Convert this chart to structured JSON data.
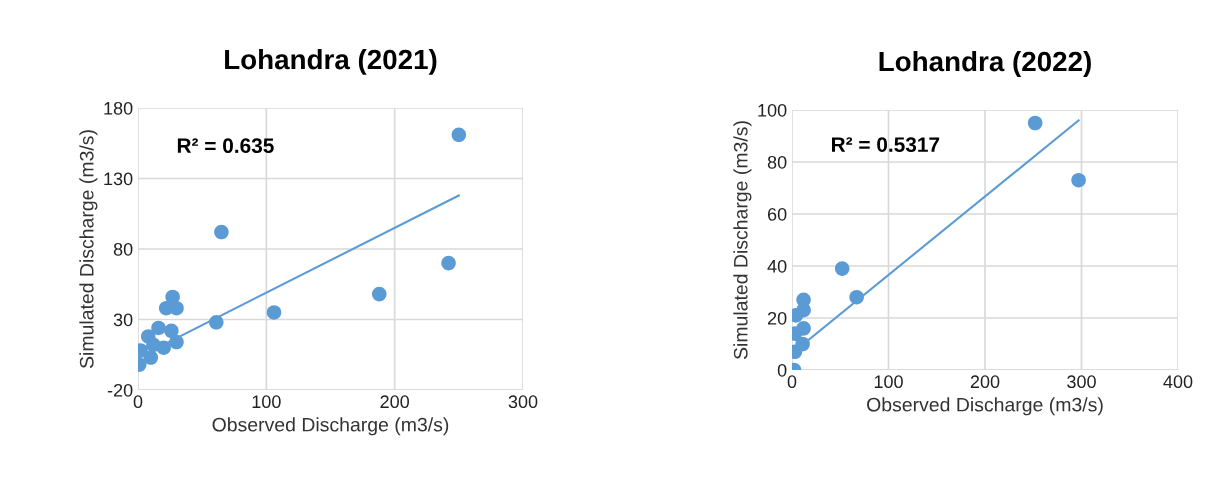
{
  "chart_data": [
    {
      "type": "scatter",
      "title": "Lohandra (2021)",
      "xlabel": "Observed Discharge (m3/s)",
      "ylabel": "Simulated Discharge (m3/s)",
      "xlim": [
        0,
        300
      ],
      "xticks": [
        0,
        100,
        200,
        300
      ],
      "ylim": [
        -20,
        180
      ],
      "yticks": [
        -20,
        30,
        80,
        130,
        180
      ],
      "grid": true,
      "marker": "circle",
      "legend": false,
      "annotations": [
        "R² = 0.635"
      ],
      "series": [
        {
          "color": "#5b9bd5",
          "x": [
            1,
            2,
            8,
            16,
            26,
            30,
            20,
            10,
            12,
            250,
            65,
            242,
            188,
            106,
            61,
            27,
            30,
            22
          ],
          "values": [
            -2,
            8,
            18,
            24,
            22,
            14,
            10,
            3,
            12,
            161,
            92,
            70,
            48,
            35,
            28,
            46,
            38,
            38
          ]
        },
        {
          "type": "line",
          "marker": "none",
          "color": "#5b9bd5",
          "x": [
            0,
            250
          ],
          "values": [
            3,
            118
          ]
        }
      ]
    },
    {
      "type": "scatter",
      "title": "Lohandra (2022)",
      "xlabel": "Observed Discharge (m3/s)",
      "ylabel": "Simulated Discharge (m3/s)",
      "xlim": [
        0,
        400
      ],
      "xticks": [
        0,
        100,
        200,
        300,
        400
      ],
      "ylim": [
        0,
        100
      ],
      "yticks": [
        0,
        20,
        40,
        60,
        80,
        100
      ],
      "grid": true,
      "marker": "circle",
      "legend": false,
      "annotations": [
        "R² = 0.5317"
      ],
      "series": [
        {
          "color": "#5b9bd5",
          "x": [
            2,
            3,
            3,
            4,
            11,
            12,
            12,
            252,
            297,
            52,
            67,
            12
          ],
          "values": [
            0,
            7,
            14,
            21,
            10,
            16,
            23,
            95,
            73,
            39,
            28,
            27
          ]
        },
        {
          "type": "line",
          "marker": "none",
          "color": "#5b9bd5",
          "x": [
            2,
            297
          ],
          "values": [
            7,
            96
          ]
        }
      ]
    }
  ]
}
